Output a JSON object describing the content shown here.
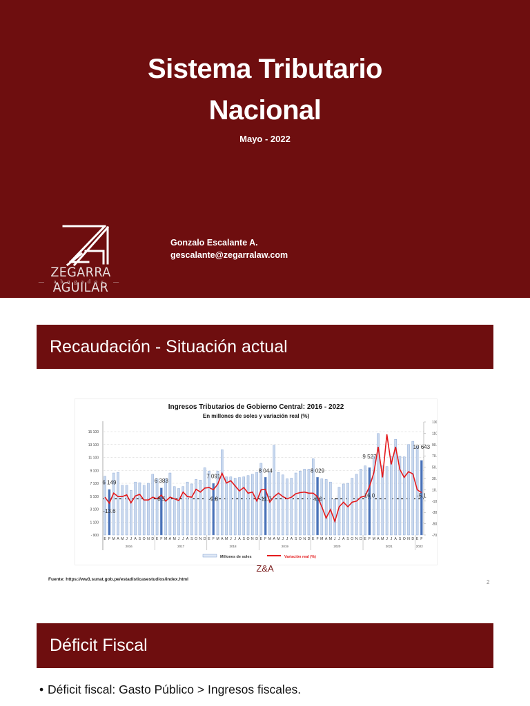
{
  "slide1": {
    "title_line1": "Sistema Tributario",
    "title_line2": "Nacional",
    "date": "Mayo - 2022",
    "author_name": "Gonzalo Escalante A.",
    "author_email": "gescalante@zegarralaw.com",
    "logo": {
      "monogram": "ZA",
      "name": "ZEGARRA AGUILAR",
      "tagline": "abogados"
    },
    "background_color": "#6e0e0f"
  },
  "slide2": {
    "header": "Recaudación - Situación actual",
    "footer_mark": "Z&A",
    "source": "Fuente: https://ww3.sunat.gob.pe/estadisticasestudios/index.html",
    "page_number": "2"
  },
  "slide3": {
    "header": "Déficit Fiscal",
    "bullets": [
      "Déficit fiscal: Gasto Público > Ingresos fiscales."
    ]
  },
  "chart_data": {
    "type": "bar",
    "title": "Ingresos Tributarios de Gobierno Central: 2016 - 2022",
    "subtitle": "En millones de soles y variación real (%)",
    "xlabel": "",
    "ylabel": "Millones de soles",
    "y2label": "Variación real (%)",
    "ylim": [
      -900,
      15100
    ],
    "y2lim": [
      -70,
      130
    ],
    "yticks": [
      "15 100",
      "13 100",
      "11 100",
      "9 100",
      "7 100",
      "5 100",
      "3 100",
      "1 100",
      "- 900"
    ],
    "y2ticks": [
      "130.0",
      "110.0",
      "90.0",
      "70.0",
      "50.0",
      "30.0",
      "10.0",
      "-10.0",
      "-30.0",
      "-50.0",
      "-70.0"
    ],
    "years": [
      "2016",
      "2017",
      "2018",
      "2019",
      "2020",
      "2021",
      "2022"
    ],
    "month_labels": [
      "E",
      "F",
      "M",
      "A",
      "M",
      "J",
      "J",
      "A",
      "S",
      "O",
      "N",
      "D"
    ],
    "legend": [
      "Millones de soles",
      "Variación real (%)"
    ],
    "legend_position": "bottom",
    "grid": true,
    "annotations": [
      "6 149",
      "-13.6",
      "6 383",
      "0.5",
      "7 091",
      "-9.8",
      "8 044",
      "-11.7",
      "8 029",
      "-2.0",
      "9 527",
      "16.0",
      "10 643",
      "-5.1"
    ],
    "series": [
      {
        "name": "Millones de soles",
        "values": [
          8200,
          6149,
          8700,
          8800,
          6800,
          6800,
          6000,
          7300,
          7200,
          6800,
          7100,
          8500,
          7800,
          6383,
          7800,
          8700,
          6600,
          6300,
          6600,
          7300,
          7000,
          7700,
          7600,
          9500,
          9000,
          7091,
          9000,
          12300,
          8100,
          8100,
          7900,
          8000,
          8100,
          8300,
          8500,
          8800,
          10200,
          8044,
          8800,
          13000,
          8800,
          8400,
          7800,
          7900,
          8700,
          9000,
          9300,
          9300,
          10900,
          8029,
          7800,
          7700,
          7300,
          4600,
          6500,
          7000,
          7100,
          7900,
          8500,
          9300,
          9800,
          9527,
          11300,
          14800,
          9800,
          9700,
          11300,
          13900,
          11300,
          11200,
          13100,
          13600,
          12800,
          10643
        ]
      },
      {
        "name": "Variación real (%)",
        "values": [
          -3,
          -13.6,
          4,
          -2,
          -2,
          1,
          -13,
          -1,
          2,
          -8,
          -8,
          -3,
          -6,
          0.5,
          -10,
          -3,
          -6,
          -9,
          6,
          -2,
          -3,
          11,
          6,
          13,
          14,
          10,
          20,
          39,
          22,
          26,
          17,
          8,
          14,
          4,
          6,
          -9.8,
          10,
          11,
          -11.7,
          -2,
          4,
          -2,
          -6,
          -3,
          3,
          5,
          6,
          4,
          4,
          -2.0,
          -20,
          -40,
          -25,
          -46,
          -20,
          -12,
          -20,
          -12,
          -10,
          -3,
          -1,
          16.0,
          40,
          86,
          32,
          108,
          55,
          86,
          46,
          32,
          42,
          38,
          10,
          5
        ]
      }
    ]
  }
}
